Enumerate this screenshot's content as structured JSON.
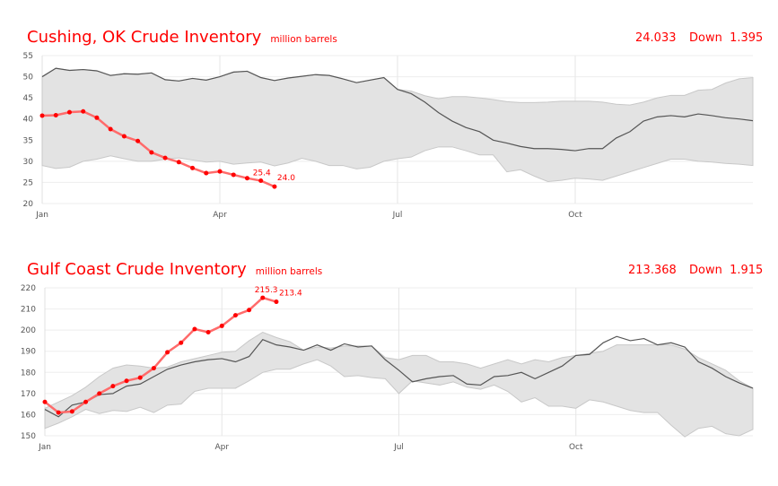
{
  "chart_data": [
    {
      "type": "line",
      "title": "Cushing, OK Crude Inventory",
      "unit": "million barrels",
      "latest_value": "24.033",
      "change": "Down  1.395",
      "ylim": [
        20,
        55
      ],
      "yticks": [
        20,
        25,
        30,
        35,
        40,
        45,
        50,
        55
      ],
      "xticks": [
        "Jan",
        "Apr",
        "Jul",
        "Oct"
      ],
      "x_unit": "week of year",
      "grid": true,
      "colors": {
        "current": "#ff0000",
        "average": "#555555",
        "band": "#e3e3e3"
      },
      "series": [
        {
          "role": "current year",
          "values": [
            40.8,
            40.9,
            41.6,
            41.8,
            40.3,
            37.6,
            35.9,
            34.8,
            32.1,
            30.8,
            29.8,
            28.4,
            27.2,
            27.6,
            26.8,
            26.0,
            25.4,
            24.0
          ]
        },
        {
          "role": "average",
          "values": [
            50,
            52,
            51.5,
            51.7,
            51.4,
            50.3,
            50.7,
            50.6,
            50.9,
            49.3,
            49,
            49.6,
            49.2,
            50,
            51.1,
            51.3,
            49.8,
            49.1,
            49.7,
            50.1,
            50.5,
            50.3,
            49.5,
            48.6,
            49.2,
            49.8,
            47,
            46,
            44,
            41.5,
            39.5,
            38,
            37,
            35,
            34.3,
            33.5,
            33,
            33,
            32.8,
            32.5,
            33,
            33,
            35.5,
            37,
            39.5,
            40.5,
            40.8,
            40.5,
            41.2,
            40.8,
            40.3,
            40,
            39.6
          ]
        },
        {
          "role": "range high",
          "values": [
            50,
            52,
            51.5,
            51.7,
            51.4,
            50.3,
            50.7,
            50.6,
            50.9,
            49.3,
            49,
            49.6,
            49.2,
            50,
            51.1,
            51.3,
            49.8,
            49.1,
            49.7,
            50.1,
            50.5,
            50.3,
            49.5,
            48.6,
            49.2,
            49.8,
            47,
            46.6,
            45.5,
            44.8,
            45.3,
            45.3,
            45,
            44.6,
            44.1,
            43.9,
            43.9,
            44,
            44.2,
            44.2,
            44.2,
            44,
            43.5,
            43.3,
            44,
            45,
            45.6,
            45.6,
            46.8,
            47,
            48.5,
            49.5,
            49.8
          ]
        },
        {
          "role": "range low",
          "values": [
            29,
            28.3,
            28.6,
            30,
            30.5,
            31.3,
            30.6,
            30,
            30,
            30.5,
            30.8,
            30.3,
            29.8,
            30,
            29.3,
            29.6,
            29.8,
            28.9,
            29.6,
            30.7,
            30,
            29,
            29,
            28.2,
            28.6,
            30,
            30.6,
            31,
            32.5,
            33.4,
            33.4,
            32.5,
            31.5,
            31.5,
            27.5,
            28,
            26.5,
            25.2,
            25.5,
            26,
            25.8,
            25.5,
            26.5,
            27.5,
            28.5,
            29.5,
            30.5,
            30.5,
            30,
            29.8,
            29.5,
            29.3,
            29
          ]
        }
      ],
      "data_labels": [
        "25.4",
        "24.0"
      ]
    },
    {
      "type": "line",
      "title": "Gulf Coast Crude Inventory",
      "unit": "million barrels",
      "latest_value": "213.368",
      "change": "Down  1.915",
      "ylim": [
        150,
        220
      ],
      "yticks": [
        150,
        160,
        170,
        180,
        190,
        200,
        210,
        220
      ],
      "xticks": [
        "Jan",
        "Apr",
        "Jul",
        "Oct"
      ],
      "x_unit": "week of year",
      "grid": true,
      "colors": {
        "current": "#ff0000",
        "average": "#555555",
        "band": "#e3e3e3"
      },
      "series": [
        {
          "role": "current year",
          "values": [
            166,
            161,
            161.5,
            166,
            170,
            173.5,
            176,
            177.5,
            182,
            189.5,
            194,
            200.5,
            199,
            202,
            207,
            209.5,
            215.3,
            213.4
          ]
        },
        {
          "role": "average",
          "values": [
            162.5,
            159,
            164.5,
            166,
            169.5,
            170,
            173.5,
            174.5,
            178,
            181.5,
            183.5,
            185,
            186,
            186.5,
            185,
            187.5,
            195.5,
            193,
            192,
            190.5,
            193,
            190.5,
            193.5,
            192,
            192.5,
            186,
            181,
            175.5,
            177,
            178,
            178.5,
            174.5,
            174,
            178,
            178.5,
            180,
            177,
            180,
            183,
            188,
            188.5,
            194,
            197,
            195,
            196,
            193,
            194,
            192,
            185,
            182,
            178,
            175,
            172.5
          ]
        },
        {
          "role": "range high",
          "values": [
            163,
            166,
            169,
            173,
            178,
            182,
            183.5,
            183,
            182,
            182.5,
            185,
            186.5,
            188,
            189.5,
            190,
            195,
            199,
            196.5,
            194.5,
            190.5,
            192,
            191.5,
            192.5,
            192.5,
            192.5,
            187,
            186,
            188,
            188,
            185,
            185,
            184,
            182,
            184,
            186,
            184,
            186,
            185,
            187,
            188,
            189,
            190,
            193,
            193,
            193,
            193,
            193,
            191,
            187,
            184,
            181,
            176,
            172.5
          ]
        },
        {
          "role": "range low",
          "values": [
            153.5,
            156,
            159,
            162.5,
            160.5,
            162,
            161.5,
            163.5,
            161,
            164.5,
            165,
            171,
            172.5,
            172.5,
            172.5,
            176,
            180,
            181.5,
            181.5,
            184,
            186,
            183,
            178,
            178.5,
            177.5,
            177,
            170,
            176,
            175,
            174,
            175.5,
            173,
            172,
            174,
            171,
            166,
            168,
            164,
            164,
            163,
            167,
            166,
            164,
            162,
            161,
            161,
            155,
            149.5,
            153.5,
            154.5,
            151,
            150,
            153
          ]
        }
      ],
      "data_labels": [
        "215.3",
        "213.4"
      ]
    }
  ]
}
